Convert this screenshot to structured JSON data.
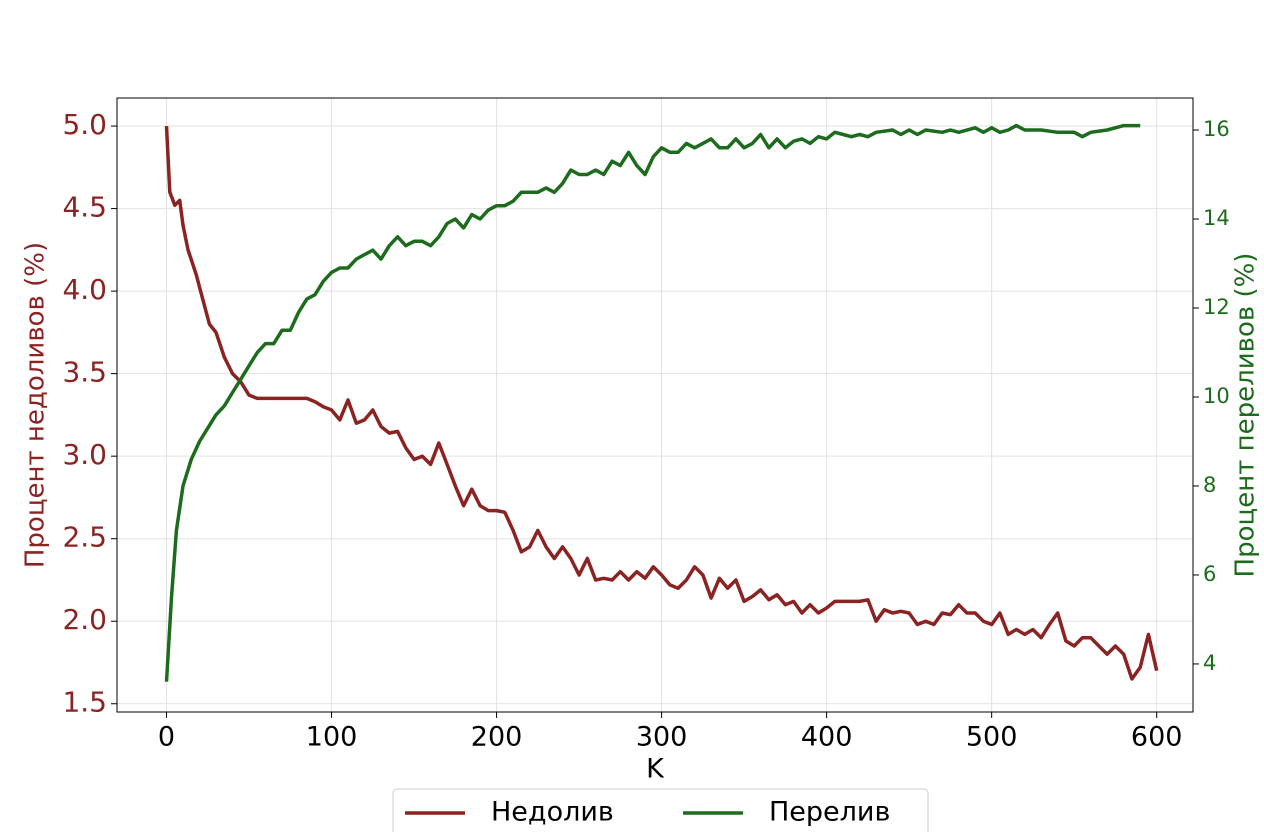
{
  "chart_data": {
    "type": "line",
    "xlabel": "K",
    "ylabel": "Процент недоливов (%)",
    "y2label": "Процент переливов (%)",
    "xlim": [
      -30,
      622
    ],
    "ylim": [
      1.45,
      5.17
    ],
    "y2lim": [
      2.92,
      16.72
    ],
    "xticks": [
      0,
      100,
      200,
      300,
      400,
      500,
      600
    ],
    "yticks": [
      1.5,
      {
        "value": 2,
        "label": "2.0"
      },
      2.5,
      {
        "value": 3,
        "label": "3.0"
      },
      3.5,
      {
        "value": 4,
        "label": "4.0"
      },
      4.5,
      {
        "value": 5,
        "label": "5.0"
      }
    ],
    "y2ticks": [
      4,
      6,
      8,
      10,
      12,
      14,
      16
    ],
    "grid": true,
    "legend": "bottom",
    "series": [
      {
        "name": "Недолив",
        "color": "#8b2323",
        "x": [
          0,
          2,
          5,
          8,
          10,
          13,
          18,
          22,
          26,
          30,
          35,
          40,
          45,
          50,
          55,
          65,
          75,
          85,
          90,
          95,
          100,
          105,
          110,
          115,
          120,
          125,
          130,
          135,
          140,
          145,
          150,
          155,
          160,
          165,
          170,
          175,
          180,
          185,
          190,
          195,
          200,
          205,
          210,
          215,
          220,
          225,
          230,
          235,
          240,
          245,
          250,
          255,
          260,
          265,
          270,
          275,
          280,
          285,
          290,
          295,
          300,
          305,
          310,
          315,
          320,
          325,
          330,
          335,
          340,
          345,
          350,
          355,
          360,
          365,
          370,
          375,
          380,
          385,
          390,
          395,
          400,
          405,
          410,
          420,
          425,
          430,
          435,
          440,
          445,
          450,
          455,
          460,
          465,
          470,
          475,
          480,
          485,
          490,
          495,
          500,
          505,
          510,
          515,
          520,
          525,
          530,
          535,
          540,
          545,
          550,
          555,
          560,
          565,
          570,
          575,
          580,
          585,
          590,
          595,
          600
        ],
        "values": [
          5.0,
          4.6,
          4.52,
          4.55,
          4.4,
          4.25,
          4.1,
          3.95,
          3.8,
          3.75,
          3.6,
          3.5,
          3.45,
          3.37,
          3.35,
          3.35,
          3.35,
          3.35,
          3.33,
          3.3,
          3.28,
          3.22,
          3.34,
          3.2,
          3.22,
          3.28,
          3.18,
          3.14,
          3.15,
          3.05,
          2.98,
          3.0,
          2.95,
          3.08,
          2.95,
          2.82,
          2.7,
          2.8,
          2.7,
          2.67,
          2.67,
          2.66,
          2.55,
          2.42,
          2.45,
          2.55,
          2.45,
          2.38,
          2.45,
          2.38,
          2.28,
          2.38,
          2.25,
          2.26,
          2.25,
          2.3,
          2.25,
          2.3,
          2.26,
          2.33,
          2.28,
          2.22,
          2.2,
          2.25,
          2.33,
          2.28,
          2.14,
          2.26,
          2.2,
          2.25,
          2.12,
          2.15,
          2.19,
          2.13,
          2.16,
          2.1,
          2.12,
          2.05,
          2.1,
          2.05,
          2.08,
          2.12,
          2.12,
          2.12,
          2.13,
          2.0,
          2.07,
          2.05,
          2.06,
          2.05,
          1.98,
          2.0,
          1.98,
          2.05,
          2.04,
          2.1,
          2.05,
          2.05,
          2.0,
          1.98,
          2.05,
          1.92,
          1.95,
          1.92,
          1.95,
          1.9,
          1.98,
          2.05,
          1.88,
          1.85,
          1.9,
          1.9,
          1.85,
          1.8,
          1.85,
          1.8,
          1.65,
          1.72,
          1.92,
          1.7
        ]
      },
      {
        "name": "Перелив",
        "color": "#1d6b1d",
        "axis": "y2",
        "x": [
          0,
          3,
          6,
          10,
          15,
          20,
          25,
          30,
          35,
          40,
          45,
          50,
          55,
          60,
          65,
          70,
          75,
          80,
          85,
          90,
          95,
          100,
          105,
          110,
          115,
          120,
          125,
          130,
          135,
          140,
          145,
          150,
          155,
          160,
          165,
          170,
          175,
          180,
          185,
          190,
          195,
          200,
          205,
          210,
          215,
          220,
          225,
          230,
          235,
          240,
          245,
          250,
          255,
          260,
          265,
          270,
          275,
          280,
          285,
          290,
          295,
          300,
          305,
          310,
          315,
          320,
          325,
          330,
          335,
          340,
          345,
          350,
          355,
          360,
          365,
          370,
          375,
          380,
          385,
          390,
          395,
          400,
          405,
          410,
          415,
          420,
          425,
          430,
          440,
          445,
          450,
          455,
          460,
          470,
          475,
          480,
          490,
          495,
          500,
          505,
          510,
          515,
          520,
          530,
          540,
          550,
          555,
          560,
          570,
          580,
          590
        ],
        "values": [
          3.6,
          5.5,
          7.0,
          8.0,
          8.6,
          9.0,
          9.3,
          9.6,
          9.8,
          10.1,
          10.4,
          10.7,
          11.0,
          11.2,
          11.2,
          11.5,
          11.5,
          11.9,
          12.2,
          12.3,
          12.6,
          12.8,
          12.9,
          12.9,
          13.1,
          13.2,
          13.3,
          13.1,
          13.4,
          13.6,
          13.4,
          13.5,
          13.5,
          13.4,
          13.6,
          13.9,
          14.0,
          13.8,
          14.1,
          14.0,
          14.2,
          14.3,
          14.3,
          14.4,
          14.6,
          14.6,
          14.6,
          14.7,
          14.6,
          14.8,
          15.1,
          15.0,
          15.0,
          15.1,
          15.0,
          15.3,
          15.2,
          15.5,
          15.2,
          15.0,
          15.4,
          15.6,
          15.5,
          15.5,
          15.7,
          15.6,
          15.7,
          15.8,
          15.6,
          15.6,
          15.8,
          15.6,
          15.7,
          15.9,
          15.6,
          15.8,
          15.6,
          15.75,
          15.8,
          15.7,
          15.85,
          15.8,
          15.95,
          15.9,
          15.85,
          15.9,
          15.85,
          15.95,
          16.0,
          15.9,
          16.0,
          15.9,
          16.0,
          15.95,
          16.0,
          15.95,
          16.05,
          15.95,
          16.05,
          15.95,
          16.0,
          16.1,
          16.0,
          16.0,
          15.95,
          15.95,
          15.85,
          15.95,
          16.0,
          16.1,
          16.1
        ]
      }
    ]
  }
}
